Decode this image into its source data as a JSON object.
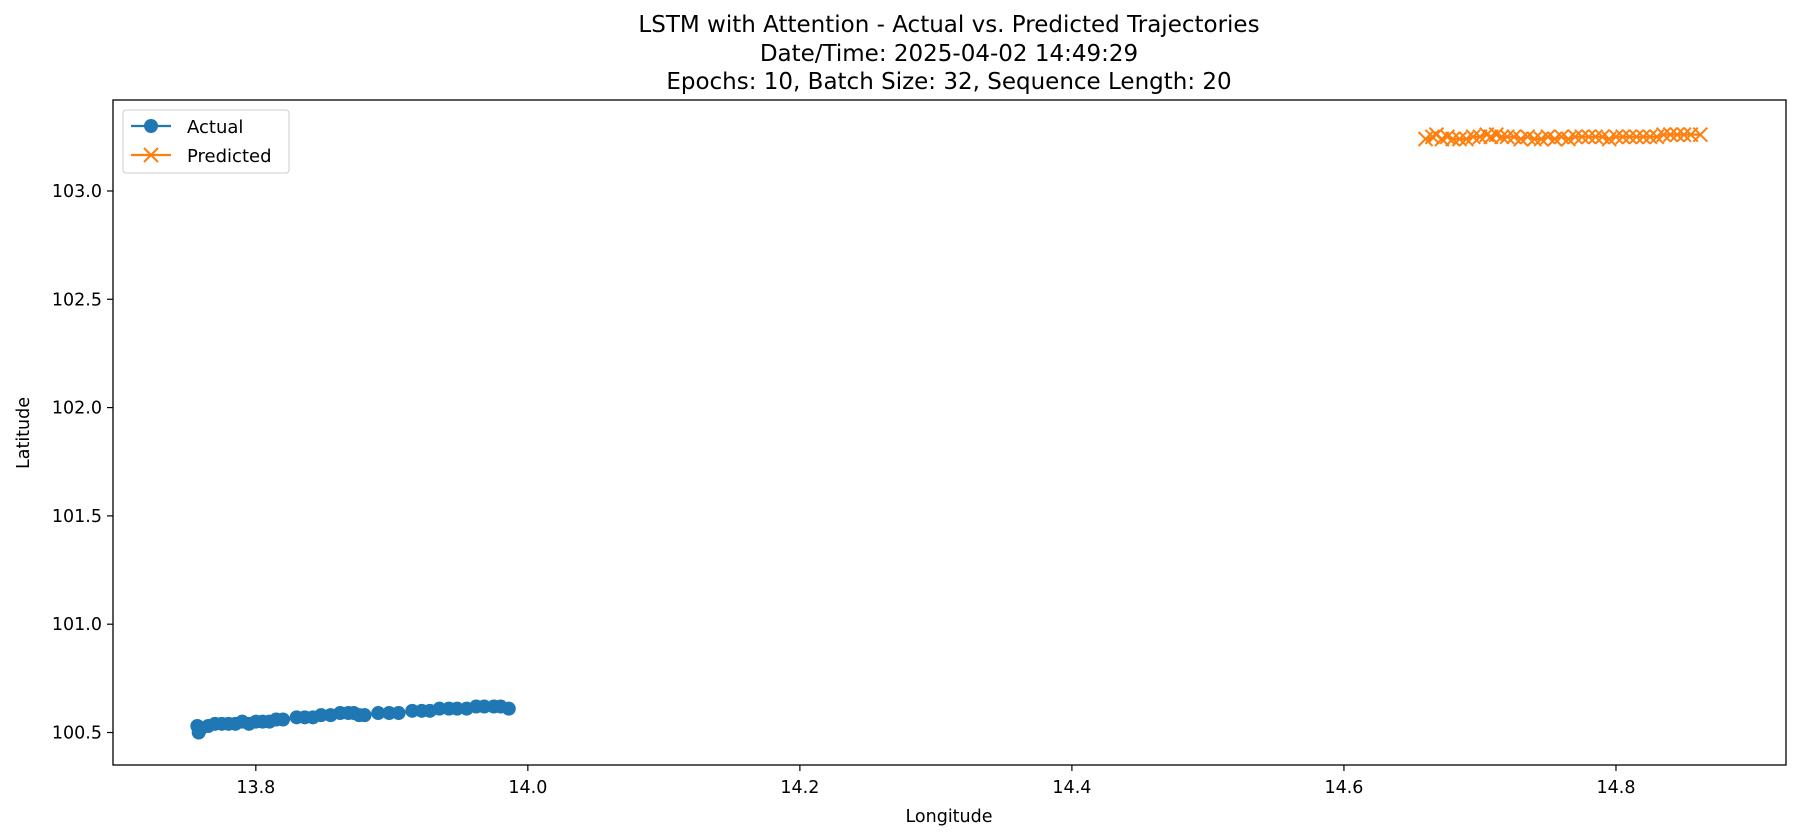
{
  "chart_data": {
    "type": "line",
    "title_lines": [
      "LSTM with Attention - Actual vs. Predicted Trajectories",
      "Date/Time: 2025-04-02 14:49:29",
      "Epochs: 10, Batch Size: 32, Sequence Length: 20"
    ],
    "xlabel": "Longitude",
    "ylabel": "Latitude",
    "xlim": [
      13.695,
      14.925
    ],
    "ylim": [
      100.35,
      103.42
    ],
    "x_ticks": [
      13.8,
      14.0,
      14.2,
      14.4,
      14.6,
      14.8
    ],
    "x_tick_labels": [
      "13.8",
      "14.0",
      "14.2",
      "14.4",
      "14.6",
      "14.8"
    ],
    "y_ticks": [
      100.5,
      101.0,
      101.5,
      102.0,
      102.5,
      103.0
    ],
    "y_tick_labels": [
      "100.5",
      "101.0",
      "101.5",
      "102.0",
      "102.5",
      "103.0"
    ],
    "grid": false,
    "legend_position": "top-left",
    "series": [
      {
        "name": "Actual",
        "color": "#1f77b4",
        "marker": "circle",
        "x": [
          13.757,
          13.758,
          13.76,
          13.765,
          13.77,
          13.775,
          13.78,
          13.785,
          13.79,
          13.795,
          13.8,
          13.805,
          13.81,
          13.815,
          13.82,
          13.83,
          13.836,
          13.842,
          13.848,
          13.855,
          13.862,
          13.868,
          13.872,
          13.876,
          13.88,
          13.89,
          13.898,
          13.905,
          13.915,
          13.922,
          13.928,
          13.935,
          13.942,
          13.948,
          13.955,
          13.962,
          13.968,
          13.975,
          13.98,
          13.986
        ],
        "y": [
          100.53,
          100.5,
          100.52,
          100.53,
          100.54,
          100.54,
          100.54,
          100.54,
          100.55,
          100.54,
          100.55,
          100.55,
          100.55,
          100.56,
          100.56,
          100.57,
          100.57,
          100.57,
          100.58,
          100.58,
          100.59,
          100.59,
          100.59,
          100.58,
          100.58,
          100.59,
          100.59,
          100.59,
          100.6,
          100.6,
          100.6,
          100.61,
          100.61,
          100.61,
          100.61,
          100.62,
          100.62,
          100.62,
          100.62,
          100.61
        ]
      },
      {
        "name": "Predicted",
        "color": "#ff7f0e",
        "marker": "x",
        "x": [
          14.66,
          14.665,
          14.668,
          14.672,
          14.676,
          14.68,
          14.685,
          14.69,
          14.695,
          14.7,
          14.705,
          14.708,
          14.712,
          14.716,
          14.72,
          14.725,
          14.73,
          14.735,
          14.74,
          14.745,
          14.75,
          14.755,
          14.76,
          14.765,
          14.77,
          14.775,
          14.78,
          14.785,
          14.79,
          14.795,
          14.8,
          14.805,
          14.81,
          14.815,
          14.82,
          14.825,
          14.83,
          14.835,
          14.84,
          14.845,
          14.85,
          14.855,
          14.862
        ],
        "y": [
          103.24,
          103.25,
          103.26,
          103.24,
          103.25,
          103.24,
          103.24,
          103.24,
          103.25,
          103.25,
          103.26,
          103.25,
          103.26,
          103.25,
          103.25,
          103.25,
          103.24,
          103.25,
          103.24,
          103.24,
          103.25,
          103.24,
          103.25,
          103.24,
          103.25,
          103.25,
          103.25,
          103.25,
          103.25,
          103.24,
          103.25,
          103.25,
          103.25,
          103.25,
          103.25,
          103.25,
          103.25,
          103.26,
          103.26,
          103.26,
          103.26,
          103.26,
          103.26
        ]
      }
    ]
  }
}
